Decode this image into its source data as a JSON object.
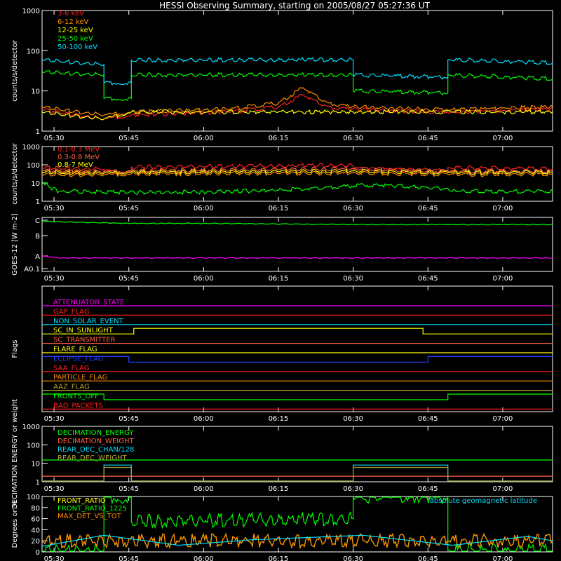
{
  "title": "HESSI Observing Summary, starting on 2005/08/27 05:27:36 UT",
  "time_ticks": [
    "05:30",
    "05:45",
    "06:00",
    "06:15",
    "06:30",
    "06:45",
    "07:00"
  ],
  "colors": {
    "red": "#ff2020",
    "orange": "#ff8c00",
    "yellow": "#ffff00",
    "green": "#00ff00",
    "cyan": "#00e0ff",
    "magenta": "#ff00ff",
    "blue": "#2040ff",
    "olive": "#b0a030",
    "salmon": "#ff6040"
  },
  "chart_data": [
    {
      "panel": "lightcurve-low",
      "type": "line",
      "ylabel": "counts/s/detector",
      "yscale": "log",
      "ylim": [
        1,
        1000
      ],
      "yticks": [
        "1",
        "10",
        "100",
        "1000"
      ],
      "series": [
        {
          "name": "3-6 keV",
          "color": "red",
          "x": [
            "05:27:36",
            "05:40",
            "05:45:30",
            "06:05",
            "06:15",
            "06:20",
            "06:25",
            "06:30",
            "06:45",
            "06:50",
            "07:10"
          ],
          "values": [
            3.5,
            2.0,
            2.5,
            3.0,
            4.0,
            8.0,
            4.0,
            3.5,
            3.0,
            3.0,
            3.5
          ]
        },
        {
          "name": "6-12 keV",
          "color": "orange",
          "x": [
            "05:27:36",
            "05:40",
            "05:45:30",
            "06:05",
            "06:15",
            "06:20",
            "06:25",
            "06:30",
            "06:45",
            "06:50",
            "07:10"
          ],
          "values": [
            4.0,
            2.5,
            3.0,
            3.5,
            5.0,
            12.0,
            5.0,
            4.0,
            3.5,
            3.5,
            4.0
          ]
        },
        {
          "name": "12-25 keV",
          "color": "yellow",
          "x": [
            "05:27:36",
            "05:40",
            "05:45:30",
            "06:15",
            "06:30",
            "06:45",
            "06:50",
            "07:10"
          ],
          "values": [
            3.0,
            2.0,
            3.0,
            3.0,
            3.0,
            3.0,
            3.0,
            3.0
          ]
        },
        {
          "name": "25-50 keV",
          "color": "green",
          "x": [
            "05:27:36",
            "05:40",
            "05:40",
            "05:45:30",
            "05:45:30",
            "06:30",
            "06:30",
            "06:49",
            "06:49",
            "07:10"
          ],
          "values": [
            30,
            25,
            6.5,
            6.5,
            25,
            25,
            10,
            9,
            25,
            20
          ]
        },
        {
          "name": "50-100 keV",
          "color": "cyan",
          "x": [
            "05:27:36",
            "05:40",
            "05:40",
            "05:45:30",
            "05:45:30",
            "06:30",
            "06:30",
            "06:49",
            "06:49",
            "07:10"
          ],
          "values": [
            60,
            45,
            16,
            16,
            58,
            60,
            25,
            22,
            60,
            50
          ]
        }
      ]
    },
    {
      "panel": "lightcurve-high",
      "type": "line",
      "ylabel": "counts/s/detector",
      "yscale": "log",
      "ylim": [
        1,
        1000
      ],
      "yticks": [
        "1",
        "10",
        "100",
        "1000"
      ],
      "series": [
        {
          "name": "0.1-0.3 MeV",
          "color": "red",
          "x": [
            "05:27:36",
            "05:40",
            "05:40",
            "05:45:30",
            "05:45:30",
            "06:30",
            "06:30",
            "06:49",
            "06:49",
            "07:10"
          ],
          "values": [
            70,
            58,
            45,
            45,
            75,
            95,
            60,
            50,
            70,
            60
          ]
        },
        {
          "name": "0.3-0.8 MeV",
          "color": "salmon",
          "x": [
            "05:27:36",
            "05:40",
            "05:45:30",
            "06:30",
            "06:49",
            "07:10"
          ],
          "values": [
            50,
            42,
            48,
            60,
            45,
            45
          ]
        },
        {
          "name": "0.8-7 MeV",
          "color": "yellow",
          "x": [
            "05:27:36",
            "05:40",
            "05:45:30",
            "06:30",
            "06:49",
            "07:10"
          ],
          "values": [
            40,
            35,
            40,
            45,
            38,
            38
          ]
        },
        {
          "name": "2-20 MeV",
          "color": "orange",
          "x": [
            "05:27:36",
            "05:40",
            "05:45:30",
            "06:30",
            "06:49",
            "07:10"
          ],
          "values": [
            30,
            28,
            32,
            35,
            30,
            30
          ]
        },
        {
          "name": "",
          "color": "green",
          "x": [
            "05:27:36",
            "05:29",
            "05:31",
            "05:45",
            "06:00",
            "06:15",
            "06:25",
            "06:35",
            "06:49",
            "06:51",
            "07:10"
          ],
          "values": [
            12,
            6,
            3.5,
            3,
            3.2,
            4,
            6,
            8,
            5,
            3.5,
            3.5
          ]
        }
      ]
    },
    {
      "panel": "goes",
      "type": "line",
      "ylabel": "GOES-12 [W m-2]",
      "yticks": [
        "A0.1",
        "A",
        "B",
        "C"
      ],
      "series": [
        {
          "color": "green",
          "x": [
            "05:27:36",
            "05:45",
            "06:00",
            "06:30",
            "07:10"
          ],
          "values": [
            "B5",
            "B4",
            "B4",
            "B3.5",
            "B3.5"
          ]
        },
        {
          "color": "magenta",
          "x": [
            "05:27:36",
            "05:31",
            "07:10"
          ],
          "values": [
            "A1",
            "A0.8",
            "A0.8"
          ]
        }
      ]
    },
    {
      "panel": "flags",
      "type": "line",
      "ylabel": "Flags",
      "series": [
        {
          "name": "ATTENUATOR_STATE",
          "color": "magenta",
          "x": [
            "05:27:36",
            "07:10"
          ],
          "values": [
            0,
            0
          ]
        },
        {
          "name": "GAP_FLAG",
          "color": "red",
          "x": [
            "05:27:36",
            "07:10"
          ],
          "values": [
            0,
            0
          ]
        },
        {
          "name": "NON_SOLAR_EVENT",
          "color": "cyan",
          "x": [
            "05:27:36",
            "07:10"
          ],
          "values": [
            0,
            0
          ]
        },
        {
          "name": "SC_IN_SUNLIGHT",
          "color": "yellow",
          "x": [
            "05:27:36",
            "05:46",
            "05:46",
            "06:44",
            "06:44",
            "07:10"
          ],
          "values": [
            0,
            0,
            1,
            1,
            0,
            0
          ]
        },
        {
          "name": "SC_TRANSMITTER",
          "color": "salmon",
          "x": [
            "05:27:36",
            "07:10"
          ],
          "values": [
            0,
            0
          ]
        },
        {
          "name": "FLARE_FLAG",
          "color": "yellow",
          "x": [
            "05:27:36",
            "07:10"
          ],
          "values": [
            0,
            0
          ]
        },
        {
          "name": "ECLIPSE_FLAG",
          "color": "blue",
          "x": [
            "05:27:36",
            "05:45",
            "05:45",
            "06:45",
            "06:45",
            "07:10"
          ],
          "values": [
            1,
            1,
            0,
            0,
            1,
            1
          ]
        },
        {
          "name": "SAA_FLAG",
          "color": "red",
          "x": [
            "05:27:36",
            "07:10"
          ],
          "values": [
            0,
            0
          ]
        },
        {
          "name": "PARTICLE_FLAG",
          "color": "orange",
          "x": [
            "05:27:36",
            "07:10"
          ],
          "values": [
            0,
            0
          ]
        },
        {
          "name": "AAZ_FLAG",
          "color": "olive",
          "x": [
            "05:27:36",
            "07:10"
          ],
          "values": [
            0,
            0
          ]
        },
        {
          "name": "FRONTS_OFF",
          "color": "green",
          "x": [
            "05:27:36",
            "05:40",
            "05:40",
            "06:49",
            "06:49",
            "07:10"
          ],
          "values": [
            1,
            1,
            0,
            0,
            1,
            1
          ]
        },
        {
          "name": "BAD_PACKETS",
          "color": "red",
          "x": [
            "05:27:36",
            "07:10"
          ],
          "values": [
            0,
            0
          ]
        }
      ]
    },
    {
      "panel": "decimation",
      "type": "line",
      "ylabel": "DECIMATION ENERGY or weight",
      "yscale": "log",
      "ylim": [
        1,
        1000
      ],
      "yticks": [
        "1",
        "10",
        "100",
        "1000"
      ],
      "series": [
        {
          "name": "DECIMATION_ENERGY",
          "color": "green",
          "x": [
            "05:27:36",
            "07:10"
          ],
          "values": [
            15,
            15
          ]
        },
        {
          "name": "DECIMATION_WEIGHT",
          "color": "salmon",
          "x": [
            "05:27:36",
            "07:10"
          ],
          "values": [
            2,
            2
          ]
        },
        {
          "name": "REAR_DEC_CHAN/128",
          "color": "cyan",
          "x": [
            "05:27:36",
            "05:40",
            "05:40",
            "05:45:30",
            "05:45:30",
            "06:30",
            "06:30",
            "06:49",
            "06:49",
            "07:10"
          ],
          "values": [
            1,
            1,
            8,
            8,
            1,
            1,
            8,
            8,
            1,
            1
          ]
        },
        {
          "name": "REAR_DEC_WEIGHT",
          "color": "olive",
          "x": [
            "05:27:36",
            "05:40",
            "05:40",
            "05:45:30",
            "05:45:30",
            "06:30",
            "06:30",
            "06:49",
            "06:49",
            "07:10"
          ],
          "values": [
            1,
            1,
            6,
            6,
            1,
            1,
            6,
            6,
            1,
            1
          ]
        }
      ]
    },
    {
      "panel": "ratios",
      "type": "line",
      "ylabel": "Degrees or %",
      "ylim": [
        0,
        100
      ],
      "yticks": [
        "0",
        "20",
        "40",
        "60",
        "80",
        "100"
      ],
      "series": [
        {
          "name": "FRONT_RATIO",
          "color": "yellow",
          "x": [
            "05:27:36",
            "07:10"
          ],
          "values": [
            20,
            20
          ]
        },
        {
          "name": "FRONT_RATIO_1225",
          "color": "green",
          "x": [
            "05:27:36",
            "05:40",
            "05:40",
            "05:45:30",
            "05:45:30",
            "06:30",
            "06:30",
            "06:49",
            "06:49",
            "07:10"
          ],
          "values": [
            2,
            2,
            100,
            100,
            55,
            60,
            100,
            100,
            2,
            2
          ]
        },
        {
          "name": "MAX_DET_VS_TOT",
          "color": "orange",
          "x": [
            "05:27:36",
            "07:10"
          ],
          "values": [
            20,
            20
          ]
        },
        {
          "name": "absolute geomagnetic latitude",
          "color": "cyan",
          "x": [
            "05:27:36",
            "05:40",
            "05:55",
            "06:10",
            "06:32",
            "06:50",
            "07:05",
            "07:10"
          ],
          "values": [
            10,
            30,
            12,
            22,
            30,
            12,
            28,
            20
          ]
        }
      ]
    }
  ]
}
